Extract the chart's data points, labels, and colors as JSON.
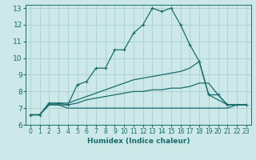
{
  "title": "",
  "xlabel": "Humidex (Indice chaleur)",
  "xlim": [
    -0.5,
    23.5
  ],
  "ylim": [
    6,
    13.2
  ],
  "xticks": [
    0,
    1,
    2,
    3,
    4,
    5,
    6,
    7,
    8,
    9,
    10,
    11,
    12,
    13,
    14,
    15,
    16,
    17,
    18,
    19,
    20,
    21,
    22,
    23
  ],
  "yticks": [
    6,
    7,
    8,
    9,
    10,
    11,
    12,
    13
  ],
  "bg_color": "#cce8e8",
  "line_color": "#1a6b6b",
  "grid_color": "#aacfcf",
  "lines": [
    {
      "x": [
        0,
        1,
        2,
        3,
        4,
        5,
        6,
        7,
        8,
        9,
        10,
        11,
        12,
        13,
        14,
        15,
        16,
        17,
        18,
        19,
        20,
        21,
        22,
        23
      ],
      "y": [
        6.6,
        6.6,
        7.3,
        7.3,
        7.2,
        8.4,
        8.6,
        9.4,
        9.4,
        10.5,
        10.5,
        11.5,
        12.0,
        13.0,
        12.8,
        13.0,
        12.0,
        10.8,
        9.8,
        7.8,
        7.8,
        7.2,
        7.2,
        7.2
      ],
      "marker": "+"
    },
    {
      "x": [
        0,
        1,
        2,
        3,
        4,
        5,
        6,
        7,
        8,
        9,
        10,
        11,
        12,
        13,
        14,
        15,
        16,
        17,
        18,
        19,
        20,
        21,
        22,
        23
      ],
      "y": [
        6.6,
        6.6,
        7.3,
        7.3,
        7.3,
        7.5,
        7.7,
        7.9,
        8.1,
        8.3,
        8.5,
        8.7,
        8.8,
        8.9,
        9.0,
        9.1,
        9.2,
        9.4,
        9.8,
        7.8,
        7.5,
        7.2,
        7.2,
        7.2
      ],
      "marker": null
    },
    {
      "x": [
        0,
        1,
        2,
        3,
        4,
        5,
        6,
        7,
        8,
        9,
        10,
        11,
        12,
        13,
        14,
        15,
        16,
        17,
        18,
        19,
        20,
        21,
        22,
        23
      ],
      "y": [
        6.6,
        6.6,
        7.2,
        7.2,
        7.2,
        7.3,
        7.5,
        7.6,
        7.7,
        7.8,
        7.9,
        8.0,
        8.0,
        8.1,
        8.1,
        8.2,
        8.2,
        8.3,
        8.5,
        8.5,
        7.8,
        7.2,
        7.2,
        7.2
      ],
      "marker": null
    },
    {
      "x": [
        0,
        1,
        2,
        3,
        4,
        5,
        6,
        7,
        8,
        9,
        10,
        11,
        12,
        13,
        14,
        15,
        16,
        17,
        18,
        19,
        20,
        21,
        22,
        23
      ],
      "y": [
        6.6,
        6.6,
        7.2,
        7.2,
        7.0,
        7.0,
        7.0,
        7.0,
        7.0,
        7.0,
        7.0,
        7.0,
        7.0,
        7.0,
        7.0,
        7.0,
        7.0,
        7.0,
        7.0,
        7.0,
        7.0,
        7.0,
        7.2,
        7.2
      ],
      "marker": null
    }
  ],
  "xlabel_fontsize": 6.5,
  "xlabel_fontweight": "bold",
  "tick_fontsize": 5.5,
  "ytick_fontsize": 6.5
}
